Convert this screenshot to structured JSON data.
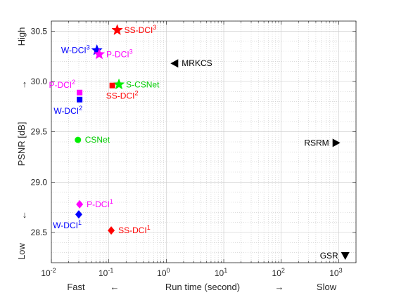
{
  "chart_data": {
    "type": "scatter",
    "title": "",
    "xscale": "log",
    "xlim": [
      0.01,
      2000
    ],
    "ylim": [
      28.2,
      30.6
    ],
    "x_ticks": [
      {
        "value": 0.01,
        "base": "10",
        "exp": "-2"
      },
      {
        "value": 0.1,
        "base": "10",
        "exp": "-1"
      },
      {
        "value": 1,
        "base": "10",
        "exp": "0"
      },
      {
        "value": 10,
        "base": "10",
        "exp": "1"
      },
      {
        "value": 100,
        "base": "10",
        "exp": "2"
      },
      {
        "value": 1000,
        "base": "10",
        "exp": "3"
      }
    ],
    "y_ticks": [
      {
        "value": 28.5,
        "label": "28.5"
      },
      {
        "value": 29.0,
        "label": "29.0"
      },
      {
        "value": 29.5,
        "label": "29.5"
      },
      {
        "value": 30.0,
        "label": "30.0"
      },
      {
        "value": 30.5,
        "label": "30.5"
      }
    ],
    "xlabel": {
      "left": "Fast",
      "left_arrow": "←",
      "center": "Run time (second)",
      "right_arrow": "→",
      "right": "Slow"
    },
    "ylabel": {
      "bottom": "Low",
      "bottom_arrow": "↓",
      "center": "PSNR [dB]",
      "top_arrow": "↑",
      "top": "High"
    },
    "grid": true,
    "points": [
      {
        "name": "SS-DCI",
        "sup": "3",
        "x": 0.14,
        "y": 30.51,
        "marker": "star",
        "color": "#ff0000",
        "label_pos": "right"
      },
      {
        "name": "W-DCI",
        "sup": "3",
        "x": 0.062,
        "y": 30.31,
        "marker": "star",
        "color": "#0000ff",
        "label_pos": "left"
      },
      {
        "name": "P-DCI",
        "sup": "3",
        "x": 0.068,
        "y": 30.27,
        "marker": "star",
        "color": "#ff00ff",
        "label_pos": "right"
      },
      {
        "name": "MRKCS",
        "sup": "",
        "x": 1.4,
        "y": 30.18,
        "marker": "triangle-left",
        "color": "#000000",
        "label_pos": "right"
      },
      {
        "name": "S-CSNet",
        "sup": "",
        "x": 0.15,
        "y": 29.97,
        "marker": "star",
        "color": "#00ee00",
        "label_pos": "right"
      },
      {
        "name": "SS-DCI",
        "sup": "2",
        "x": 0.115,
        "y": 29.96,
        "marker": "square",
        "color": "#ff0000",
        "label_pos": "below"
      },
      {
        "name": "P-DCI",
        "sup": "2",
        "x": 0.031,
        "y": 29.89,
        "marker": "square",
        "color": "#ff00ff",
        "label_pos": "left-above"
      },
      {
        "name": "W-DCI",
        "sup": "2",
        "x": 0.031,
        "y": 29.82,
        "marker": "square",
        "color": "#0000ff",
        "label_pos": "left-below"
      },
      {
        "name": "CSNet",
        "sup": "",
        "x": 0.029,
        "y": 29.42,
        "marker": "circle",
        "color": "#00ee00",
        "label_pos": "right"
      },
      {
        "name": "RSRM",
        "sup": "",
        "x": 900,
        "y": 29.39,
        "marker": "triangle-right",
        "color": "#000000",
        "label_pos": "left"
      },
      {
        "name": "P-DCI",
        "sup": "1",
        "x": 0.031,
        "y": 28.78,
        "marker": "diamond",
        "color": "#ff00ff",
        "label_pos": "right"
      },
      {
        "name": "W-DCI",
        "sup": "1",
        "x": 0.03,
        "y": 28.68,
        "marker": "diamond",
        "color": "#0000ff",
        "label_pos": "left-below"
      },
      {
        "name": "SS-DCI",
        "sup": "1",
        "x": 0.11,
        "y": 28.52,
        "marker": "diamond",
        "color": "#ff0000",
        "label_pos": "right"
      },
      {
        "name": "GSR",
        "sup": "",
        "x": 1300,
        "y": 28.27,
        "marker": "triangle-down",
        "color": "#000000",
        "label_pos": "left"
      }
    ],
    "label_colors": {
      "SS-DCI": "#ff0000",
      "W-DCI": "#0000ff",
      "P-DCI": "#ff00ff",
      "S-CSNet": "#00cc00",
      "CSNet": "#00cc00",
      "MRKCS": "#000000",
      "RSRM": "#000000",
      "GSR": "#000000"
    }
  }
}
